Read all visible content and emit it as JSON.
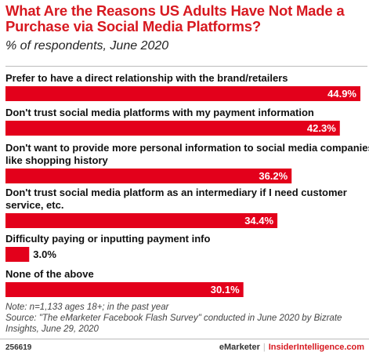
{
  "chart_data": {
    "type": "bar",
    "orientation": "horizontal",
    "title": "What Are the Reasons US Adults Have Not Made a Purchase via Social Media Platforms?",
    "subtitle": "% of respondents, June 2020",
    "categories": [
      "Prefer to have a direct relationship with the brand/retailers",
      "Don't trust social media platforms with my payment information",
      "Don't want to provide more personal information to social media companies like shopping history",
      "Don't trust social media platform as an intermediary if I need customer service, etc.",
      "Difficulty paying or inputting payment info",
      "None of the above"
    ],
    "values": [
      44.9,
      42.3,
      36.2,
      34.4,
      3.0,
      30.1
    ],
    "value_labels": [
      "44.9%",
      "42.3%",
      "36.2%",
      "34.4%",
      "3.0%",
      "30.1%"
    ],
    "xlim": [
      0,
      44.9
    ],
    "bar_color": "#e3001b",
    "grid": false,
    "legend": "none"
  },
  "footnote": {
    "note": "Note: n=1,133 ages 18+; in the past year",
    "source": "Source: \"The eMarketer Facebook Flash Survey\" conducted in June 2020 by Bizrate Insights, June 29, 2020"
  },
  "footer": {
    "chart_id": "256619",
    "brand_left": "eMarketer",
    "separator": "|",
    "brand_right": "InsiderIntelligence.com"
  }
}
